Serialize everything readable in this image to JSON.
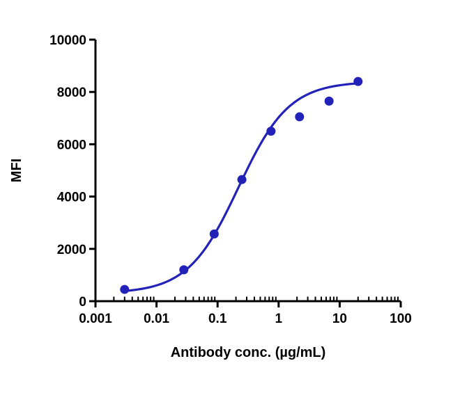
{
  "chart": {
    "background": "#ffffff"
  },
  "chart_data": {
    "type": "scatter",
    "title": "",
    "xlabel": "Antibody conc. (µg/mL)",
    "ylabel": "MFI",
    "x_scale": "log",
    "y_scale": "linear",
    "xlim": [
      0.001,
      100
    ],
    "ylim": [
      0,
      10000
    ],
    "x_ticks": [
      0.001,
      0.01,
      0.1,
      1,
      10,
      100
    ],
    "x_tick_labels": [
      "0.001",
      "0.01",
      "0.1",
      "1",
      "10",
      "100"
    ],
    "y_ticks": [
      0,
      2000,
      4000,
      6000,
      8000,
      10000
    ],
    "y_tick_labels": [
      "0",
      "2000",
      "4000",
      "6000",
      "8000",
      "10000"
    ],
    "grid": "off",
    "legend": "none",
    "points": {
      "x": [
        0.003,
        0.028,
        0.088,
        0.25,
        0.75,
        2.2,
        6.7,
        20
      ],
      "y": [
        450,
        1200,
        2570,
        4650,
        6500,
        7050,
        7650,
        8400
      ]
    },
    "fit_curve": {
      "model": "4PL-sigmoid",
      "bottom": 300,
      "top": 8400,
      "ec50": 0.22,
      "hill": 1.05,
      "x_range": [
        0.003,
        20
      ]
    },
    "colors": {
      "series": "#2222b8",
      "axis": "#000000"
    },
    "marker": "circle",
    "marker_radius": 6.5,
    "curve_width": 3.2
  }
}
